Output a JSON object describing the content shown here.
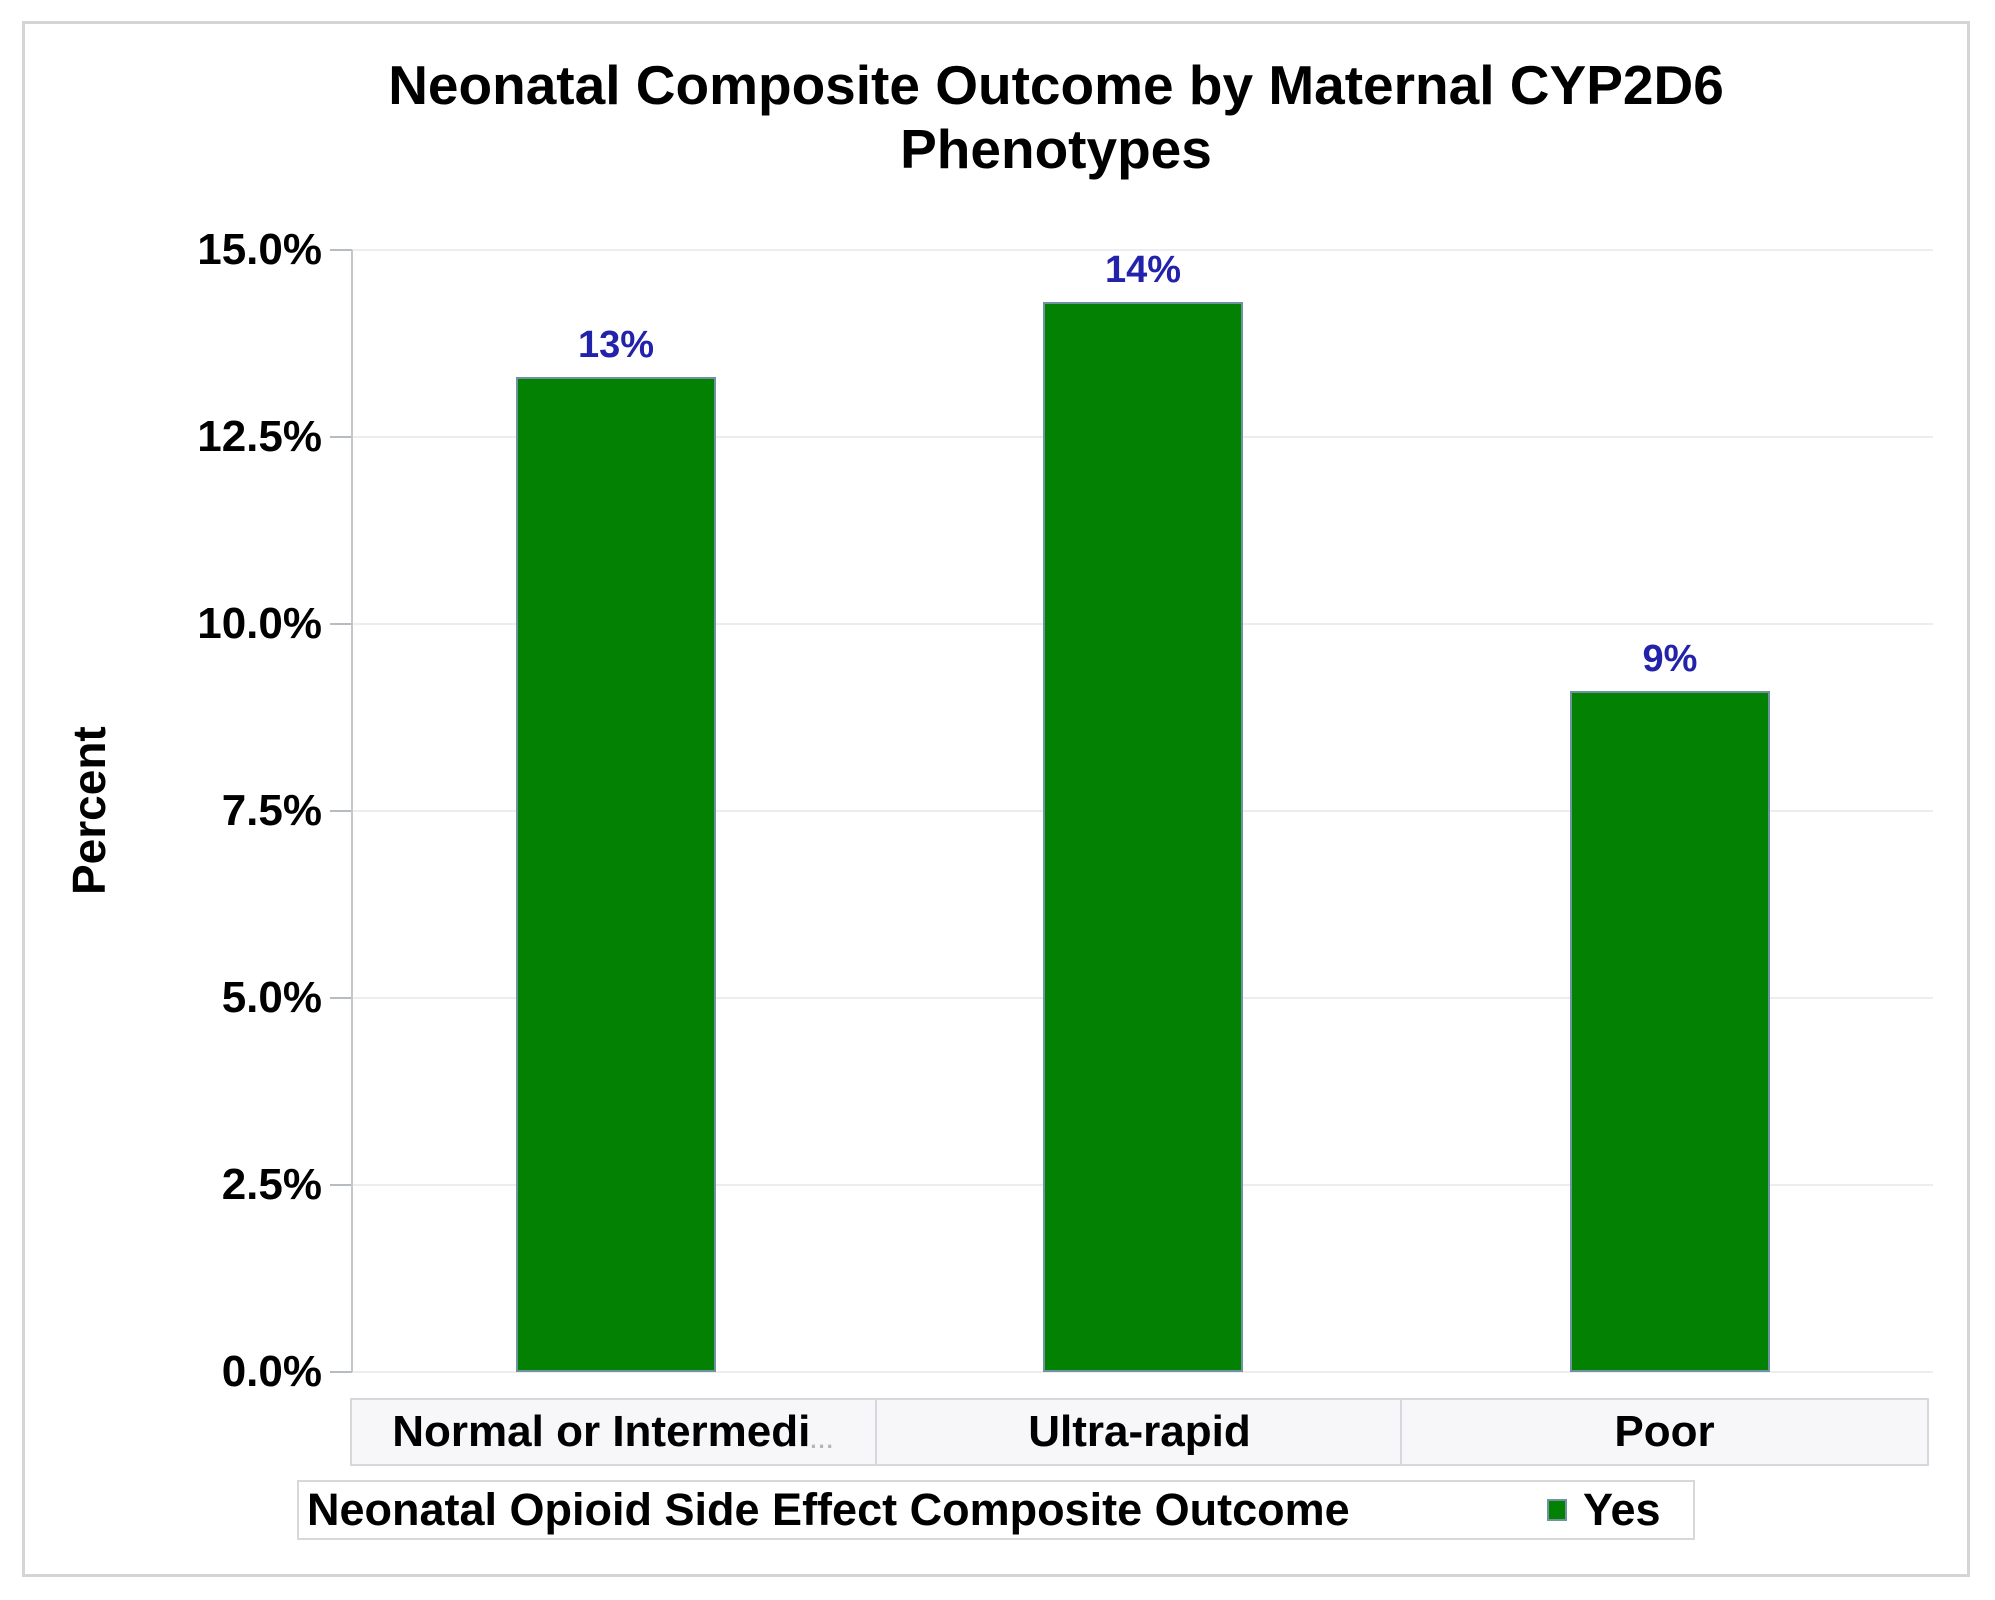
{
  "chart_data": {
    "type": "bar",
    "title": "Neonatal Composite Outcome by Maternal CYP2D6 Phenotypes",
    "ylabel": "Percent",
    "xlabel": "",
    "ylim": [
      0,
      15
    ],
    "ytick_step": 2.5,
    "ytick_labels": [
      "0.0%",
      "2.5%",
      "5.0%",
      "7.5%",
      "10.0%",
      "12.5%",
      "15.0%"
    ],
    "grid": true,
    "legend_position": "bottom",
    "categories": [
      {
        "text": "Normal or Intermedi",
        "suffix": "..."
      },
      {
        "text": "Ultra-rapid",
        "suffix": ""
      },
      {
        "text": "Poor",
        "suffix": ""
      }
    ],
    "series": [
      {
        "name": "Yes",
        "values": [
          13.3,
          14.3,
          9.1
        ],
        "value_labels": [
          "13%",
          "14%",
          "9%"
        ]
      }
    ],
    "legend": {
      "title": "Neonatal Opioid Side Effect Composite Outcome",
      "entries": [
        {
          "label": "Yes",
          "color": "#028102"
        }
      ]
    },
    "colors": {
      "bar_fill": "#028102",
      "bar_border": "#7093a3",
      "value_label": "#2222ab"
    }
  }
}
